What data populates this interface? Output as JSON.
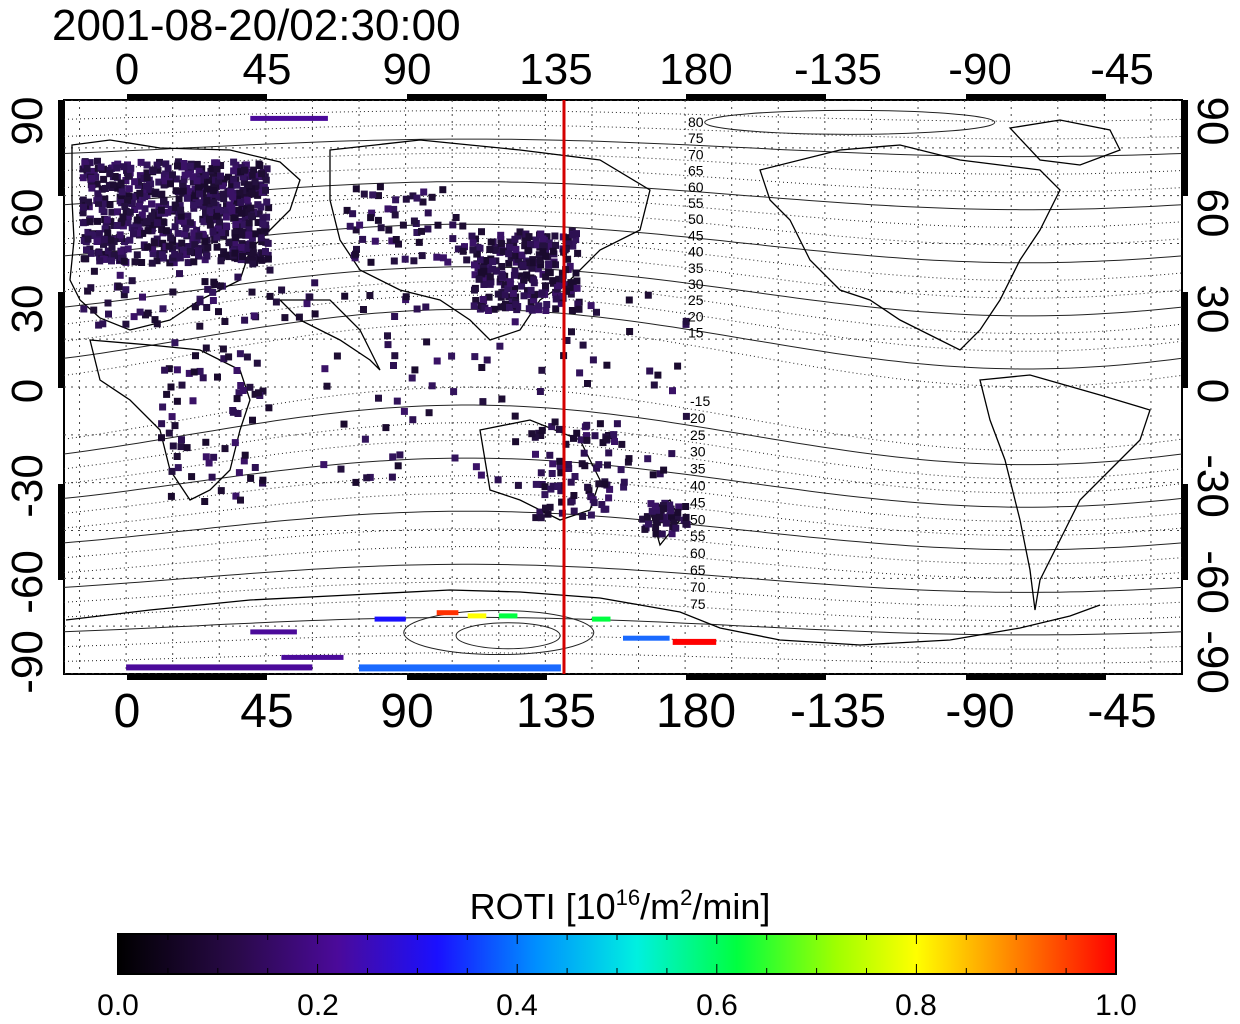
{
  "title": "2001-08-20/02:30:00",
  "top_axis_ticks": [
    "0",
    "45",
    "90",
    "135",
    "180",
    "-135",
    "-90",
    "-45"
  ],
  "bottom_axis_ticks": [
    "0",
    "45",
    "90",
    "135",
    "180",
    "-135",
    "-90",
    "-45"
  ],
  "left_axis_ticks": [
    "90",
    "60",
    "30",
    "0",
    "-30",
    "-60",
    "-90"
  ],
  "right_axis_ticks": [
    "90",
    "60",
    "30",
    "0",
    "-30",
    "-60",
    "-90"
  ],
  "colorbar": {
    "label": "ROTI  [10",
    "label_sup1": "16",
    "label_mid": "/m",
    "label_sup2": "2",
    "label_end": "/min]",
    "ticks": [
      "0.0",
      "0.2",
      "0.4",
      "0.6",
      "0.8",
      "1.0"
    ],
    "range": [
      0.0,
      1.0
    ]
  },
  "map": {
    "lon_range": [
      -20,
      340
    ],
    "lat_range": [
      -90,
      90
    ],
    "meridian_marker_lon": 141,
    "meridian_marker_color": "#d40000",
    "mlat_labels_north": [
      "80",
      "75",
      "70",
      "65",
      "60",
      "55",
      "50",
      "45",
      "40",
      "35",
      "30",
      "25",
      "20",
      "15"
    ],
    "mlat_labels_south": [
      "-15",
      "20",
      "25",
      "30",
      "35",
      "40",
      "45",
      "50",
      "55",
      "60",
      "65",
      "70",
      "75"
    ]
  }
}
